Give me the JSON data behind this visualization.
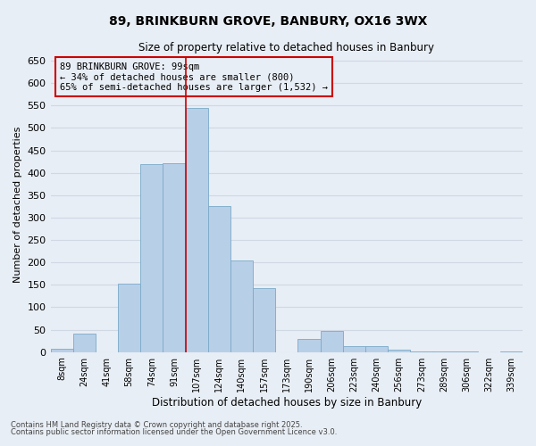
{
  "title": "89, BRINKBURN GROVE, BANBURY, OX16 3WX",
  "subtitle": "Size of property relative to detached houses in Banbury",
  "xlabel": "Distribution of detached houses by size in Banbury",
  "ylabel": "Number of detached properties",
  "categories": [
    "8sqm",
    "24sqm",
    "41sqm",
    "58sqm",
    "74sqm",
    "91sqm",
    "107sqm",
    "124sqm",
    "140sqm",
    "157sqm",
    "173sqm",
    "190sqm",
    "206sqm",
    "223sqm",
    "240sqm",
    "256sqm",
    "273sqm",
    "289sqm",
    "306sqm",
    "322sqm",
    "339sqm"
  ],
  "values": [
    8,
    42,
    0,
    152,
    420,
    422,
    545,
    325,
    204,
    143,
    0,
    30,
    47,
    14,
    13,
    6,
    2,
    1,
    1,
    0,
    1
  ],
  "bar_color": "#b8cfe8",
  "bar_edge_color": "#7aaac8",
  "vline_x_index": 5.5,
  "vline_color": "#cc0000",
  "annotation_text": "89 BRINKBURN GROVE: 99sqm\n← 34% of detached houses are smaller (800)\n65% of semi-detached houses are larger (1,532) →",
  "annotation_box_color": "#cc0000",
  "bg_color": "#e8eef5",
  "grid_color": "#d0d8e4",
  "ylim": [
    0,
    660
  ],
  "yticks": [
    0,
    50,
    100,
    150,
    200,
    250,
    300,
    350,
    400,
    450,
    500,
    550,
    600,
    650
  ],
  "footer_line1": "Contains HM Land Registry data © Crown copyright and database right 2025.",
  "footer_line2": "Contains public sector information licensed under the Open Government Licence v3.0."
}
